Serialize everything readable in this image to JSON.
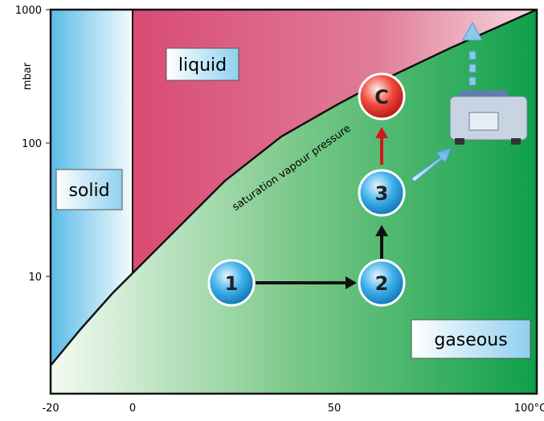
{
  "axes": {
    "y_unit": "mbar",
    "y_ticks": [
      "1000",
      "100",
      "10"
    ],
    "x_ticks": [
      "-20",
      "0",
      "50",
      "100°C"
    ]
  },
  "regions": {
    "solid": "solid",
    "liquid": "liquid",
    "gaseous": "gaseous"
  },
  "curve_label": "saturation vapour pressure",
  "steps": [
    "1",
    "2",
    "3",
    "C"
  ]
}
